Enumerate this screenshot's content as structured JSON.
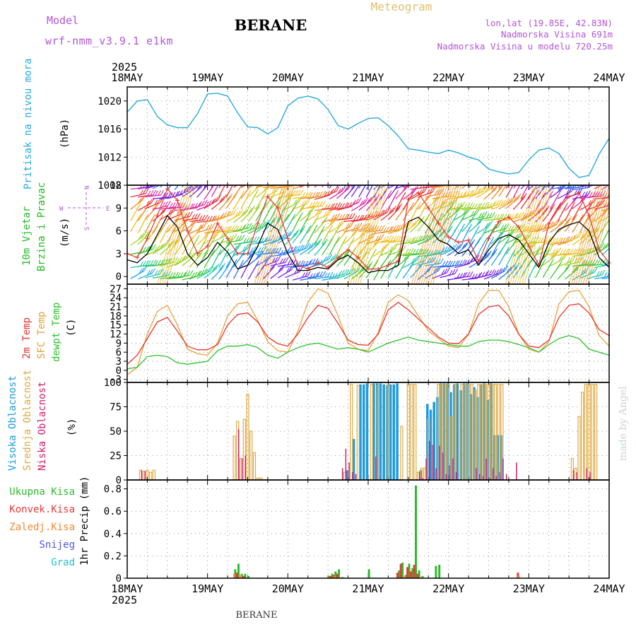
{
  "header": {
    "model_label": "Model",
    "model_name": "wrf-nmm_v3.9.1 e1km",
    "station": "BERANE",
    "product": "Meteogram",
    "lonlat": "lon,lat (19.85E, 42.83N)",
    "elevation": "Nadmorska Visina 691m",
    "model_elevation": "Nadmorska Visina u modelu 720.25m",
    "footer_station": "BERANE",
    "credit": "made by Angel"
  },
  "colors": {
    "pressure": "#29a9e0",
    "wind_speed": "#000000",
    "wind_gust": "#e8342c",
    "t2m": "#e8342c",
    "sfc_temp": "#e6a23c",
    "dewpoint": "#2bc22b",
    "cloud_high": "#1e9be0",
    "cloud_mid": "#e0aa40",
    "cloud_low": "#d01f6c",
    "precip_total": "#2dbb2d",
    "precip_conv": "#e83a3a",
    "precip_frz": "#f08a32",
    "snow": "#5555e0",
    "hail": "#22c4c4",
    "header_purple": "#b455d8",
    "header_gold": "#e0c070"
  },
  "chart_data": [
    {
      "type": "line",
      "panel": "pressure",
      "ylabel": "(hPa)",
      "side_labels": [
        "Pritisak na nivou mora"
      ],
      "x_ticks": [
        "18MAY",
        "19MAY",
        "20MAY",
        "21MAY",
        "22MAY",
        "23MAY",
        "24MAY"
      ],
      "x_year": "2025",
      "y_ticks": [
        "1008",
        "1012",
        "1016",
        "1020"
      ],
      "ylim": [
        1008,
        1022
      ],
      "series": [
        {
          "x": [
            0,
            3,
            6,
            9,
            12,
            15,
            18,
            21,
            24,
            27,
            30,
            33,
            36,
            39,
            42,
            45,
            48,
            51,
            54,
            57,
            60,
            63,
            66,
            69,
            72,
            75,
            78,
            81,
            84,
            87,
            90,
            93,
            96,
            99,
            102,
            105,
            108,
            111,
            114,
            117,
            120,
            123,
            126,
            129,
            132,
            135,
            138,
            141,
            144
          ],
          "y": [
            1018.4,
            1020.0,
            1020.2,
            1017.8,
            1016.6,
            1016.2,
            1016.2,
            1018.2,
            1021.0,
            1021.1,
            1020.7,
            1018.3,
            1016.3,
            1016.2,
            1015.3,
            1016.2,
            1019.3,
            1020.4,
            1020.7,
            1020.3,
            1018.8,
            1016.5,
            1016.0,
            1016.8,
            1017.5,
            1017.6,
            1016.5,
            1015.0,
            1013.2,
            1013.0,
            1012.7,
            1012.5,
            1013.0,
            1012.6,
            1012.0,
            1011.6,
            1010.3,
            1009.9,
            1009.6,
            1009.8,
            1011.6,
            1013.0,
            1013.3,
            1012.5,
            1010.4,
            1009.1,
            1009.4,
            1012.4,
            1014.7
          ]
        }
      ]
    },
    {
      "type": "line",
      "panel": "wind",
      "ylabel": "(m/s)",
      "side_labels": [
        "10m Vjetar",
        "Brzina i Pravac"
      ],
      "compass": {
        "n": "N",
        "s": "S",
        "w": "W",
        "e": "E"
      },
      "y_ticks": [
        "0",
        "3",
        "6",
        "9",
        "12"
      ],
      "ylim": [
        -1,
        12
      ],
      "series": [
        {
          "name": "speed",
          "x": [
            0,
            3,
            6,
            9,
            12,
            15,
            18,
            21,
            24,
            27,
            30,
            33,
            36,
            39,
            42,
            45,
            48,
            51,
            54,
            57,
            60,
            63,
            66,
            69,
            72,
            75,
            78,
            81,
            84,
            87,
            90,
            93,
            96,
            99,
            102,
            105,
            108,
            111,
            114,
            117,
            120,
            123,
            126,
            129,
            132,
            135,
            138,
            141,
            144
          ],
          "y": [
            2.2,
            1.8,
            3.0,
            5.5,
            8.0,
            6.5,
            3.0,
            1.5,
            2.5,
            4.5,
            3.2,
            1.0,
            1.5,
            4.0,
            7.0,
            6.2,
            3.0,
            0.8,
            0.8,
            1.2,
            1.0,
            2.2,
            2.8,
            1.8,
            0.5,
            0.8,
            0.8,
            1.5,
            7.2,
            7.8,
            6.5,
            4.8,
            4.2,
            3.0,
            3.5,
            1.5,
            3.5,
            5.0,
            5.5,
            4.8,
            3.0,
            1.2,
            4.5,
            6.2,
            6.8,
            7.2,
            6.0,
            2.5,
            1.2
          ]
        },
        {
          "name": "gust",
          "x": [
            0,
            3,
            6,
            9,
            12,
            15,
            18,
            21,
            24,
            27,
            30,
            33,
            36,
            39,
            42,
            45,
            48,
            51,
            54,
            57,
            60,
            63,
            66,
            69,
            72,
            75,
            78,
            81,
            84,
            87,
            90,
            93,
            96,
            99,
            102,
            105,
            108,
            111,
            114,
            117,
            120,
            123,
            126,
            129,
            132,
            135,
            138,
            141,
            144
          ],
          "y": [
            3.0,
            2.5,
            5.0,
            8.0,
            11.5,
            10.0,
            6.0,
            3.0,
            4.0,
            7.0,
            5.0,
            3.0,
            3.0,
            7.0,
            10.5,
            9.0,
            5.0,
            1.5,
            1.0,
            1.8,
            1.2,
            2.5,
            3.5,
            2.5,
            1.0,
            1.0,
            1.5,
            2.0,
            10.2,
            11.0,
            9.0,
            7.0,
            5.2,
            4.5,
            4.8,
            2.0,
            5.0,
            7.2,
            7.8,
            6.5,
            4.0,
            1.5,
            7.0,
            9.0,
            10.5,
            11.0,
            8.0,
            3.5,
            1.8
          ]
        }
      ]
    },
    {
      "type": "line",
      "panel": "temperature",
      "ylabel": "(C)",
      "side_labels": [
        "2m Temp",
        "SFC Temp",
        "dewpt Temp"
      ],
      "y_ticks": [
        "-3",
        "0",
        "3",
        "6",
        "9",
        "12",
        "15",
        "18",
        "21",
        "24",
        "27"
      ],
      "ylim": [
        -4,
        28.5
      ],
      "series": [
        {
          "name": "2m Temp",
          "x": [
            0,
            3,
            6,
            9,
            12,
            15,
            18,
            21,
            24,
            27,
            30,
            33,
            36,
            39,
            42,
            45,
            48,
            51,
            54,
            57,
            60,
            63,
            66,
            69,
            72,
            75,
            78,
            81,
            84,
            87,
            90,
            93,
            96,
            99,
            102,
            105,
            108,
            111,
            114,
            117,
            120,
            123,
            126,
            129,
            132,
            135,
            138,
            141,
            144
          ],
          "y": [
            2.0,
            5.0,
            10.5,
            16.0,
            17.5,
            13.0,
            8.0,
            6.8,
            6.8,
            8.5,
            15.0,
            18.5,
            19.0,
            16.0,
            11.0,
            8.8,
            8.0,
            12.0,
            17.5,
            21.5,
            20.5,
            15.5,
            10.0,
            8.5,
            8.3,
            12.0,
            20.0,
            22.5,
            20.0,
            17.0,
            14.0,
            11.0,
            9.0,
            8.8,
            12.0,
            18.5,
            21.0,
            21.5,
            18.0,
            12.0,
            8.0,
            7.5,
            10.0,
            17.5,
            21.5,
            22.0,
            19.0,
            13.5,
            11.5
          ]
        },
        {
          "name": "SFC Temp",
          "x": [
            0,
            3,
            6,
            9,
            12,
            15,
            18,
            21,
            24,
            27,
            30,
            33,
            36,
            39,
            42,
            45,
            48,
            51,
            54,
            57,
            60,
            63,
            66,
            69,
            72,
            75,
            78,
            81,
            84,
            87,
            90,
            93,
            96,
            99,
            102,
            105,
            108,
            111,
            114,
            117,
            120,
            123,
            126,
            129,
            132,
            135,
            138,
            141,
            144
          ],
          "y": [
            -1.5,
            1.0,
            12.0,
            19.5,
            21.5,
            15.0,
            7.0,
            5.5,
            5.0,
            9.0,
            18.0,
            22.0,
            22.5,
            16.5,
            9.5,
            6.5,
            6.0,
            13.0,
            22.5,
            27.0,
            25.5,
            18.0,
            9.0,
            7.0,
            6.5,
            12.5,
            22.5,
            25.0,
            23.0,
            18.0,
            13.0,
            10.5,
            8.0,
            7.5,
            12.0,
            22.0,
            26.5,
            26.5,
            21.0,
            12.0,
            7.0,
            6.0,
            9.5,
            22.0,
            26.0,
            26.5,
            21.0,
            11.5,
            8.0
          ]
        },
        {
          "name": "dewpt Temp",
          "x": [
            0,
            3,
            6,
            9,
            12,
            15,
            18,
            21,
            24,
            27,
            30,
            33,
            36,
            39,
            42,
            45,
            48,
            51,
            54,
            57,
            60,
            63,
            66,
            69,
            72,
            75,
            78,
            81,
            84,
            87,
            90,
            93,
            96,
            99,
            102,
            105,
            108,
            111,
            114,
            117,
            120,
            123,
            126,
            129,
            132,
            135,
            138,
            141,
            144
          ],
          "y": [
            0.5,
            1.0,
            4.5,
            5.0,
            4.5,
            2.5,
            2.0,
            2.5,
            3.0,
            6.5,
            8.0,
            8.0,
            8.5,
            7.5,
            5.0,
            4.0,
            6.0,
            7.5,
            8.5,
            9.0,
            8.0,
            7.0,
            7.5,
            7.0,
            6.0,
            7.5,
            9.0,
            10.0,
            11.0,
            10.0,
            9.5,
            9.0,
            8.5,
            8.0,
            8.0,
            9.5,
            10.0,
            10.0,
            9.5,
            8.5,
            7.5,
            6.0,
            8.5,
            10.5,
            11.5,
            10.5,
            7.0,
            6.0,
            5.0
          ]
        }
      ]
    },
    {
      "type": "bar",
      "panel": "clouds",
      "ylabel": "(%)",
      "side_labels": [
        "Visoka Oblacnost",
        "Srednja Oblacnost",
        "Niska Oblacnost"
      ],
      "y_ticks": [
        "0",
        "25",
        "50",
        "75",
        "100"
      ],
      "ylim": [
        0,
        100
      ],
      "series": [
        {
          "name": "Visoka Oblacnost",
          "x": [
            66,
            68,
            70,
            71,
            72,
            74,
            75,
            76,
            77,
            78,
            79,
            80,
            81,
            88,
            90,
            91,
            92,
            93,
            94,
            95,
            96,
            97,
            98,
            99,
            100,
            101,
            102,
            103,
            104,
            105,
            106,
            107,
            108,
            109,
            110,
            111,
            112
          ],
          "y": [
            10,
            42,
            98,
            98,
            99,
            99,
            99,
            99,
            98,
            97,
            98,
            98,
            99,
            10,
            78,
            72,
            80,
            85,
            99,
            99,
            99,
            90,
            98,
            99,
            92,
            99,
            99,
            88,
            95,
            85,
            98,
            99,
            82,
            99,
            46,
            46,
            46
          ]
        },
        {
          "name": "Srednja Oblacnost",
          "x": [
            4,
            5,
            6,
            7,
            8,
            32,
            33,
            34,
            35,
            36,
            37,
            38,
            39,
            40,
            65,
            67,
            69,
            73,
            75,
            78,
            82,
            84,
            85,
            86,
            87,
            88,
            89,
            90,
            93,
            94,
            95,
            96,
            97,
            98,
            100,
            101,
            102,
            103,
            104,
            105,
            106,
            107,
            108,
            109,
            110,
            111,
            112,
            133,
            134,
            135,
            136,
            137,
            138,
            139,
            140
          ],
          "y": [
            10,
            9,
            10,
            8,
            10,
            45,
            60,
            22,
            62,
            88,
            50,
            28,
            2,
            2,
            8,
            98,
            97,
            98,
            97,
            98,
            55,
            98,
            98,
            98,
            8,
            12,
            12,
            62,
            98,
            98,
            98,
            98,
            65,
            98,
            98,
            98,
            98,
            98,
            92,
            98,
            98,
            98,
            98,
            98,
            98,
            98,
            98,
            22,
            12,
            65,
            90,
            98,
            98,
            98,
            98
          ]
        },
        {
          "name": "Niska Oblacnost",
          "x": [
            4,
            5,
            33,
            34,
            35,
            64,
            65,
            66,
            67,
            68,
            74,
            87,
            88,
            89,
            90,
            91,
            92,
            93,
            94,
            95,
            96,
            97,
            98,
            104,
            105,
            106,
            107,
            108,
            109,
            110,
            111,
            112,
            113,
            116,
            133,
            134,
            137,
            138
          ],
          "y": [
            10,
            9,
            52,
            22,
            25,
            12,
            32,
            18,
            8,
            6,
            24,
            8,
            2,
            22,
            40,
            36,
            12,
            35,
            28,
            6,
            15,
            22,
            8,
            12,
            6,
            4,
            22,
            2,
            12,
            4,
            8,
            22,
            6,
            18,
            10,
            8,
            12,
            8
          ]
        }
      ]
    },
    {
      "type": "bar",
      "panel": "precipitation",
      "ylabel": "1hr Precip (mm)",
      "side_labels": [
        "Ukupna Kisa",
        "Konvek.Kisa",
        "Zaledj.Kisa",
        "Snijeg",
        "Grad"
      ],
      "x_ticks": [
        "18MAY",
        "19MAY",
        "20MAY",
        "21MAY",
        "22MAY",
        "23MAY",
        "24MAY"
      ],
      "x_year": "2025",
      "y_ticks": [
        "0",
        "0.2",
        "0.4",
        "0.6",
        "0.8"
      ],
      "ylim": [
        0,
        0.88
      ],
      "series": [
        {
          "name": "Ukupna Kisa",
          "x": [
            32,
            33,
            34,
            35,
            36,
            60,
            61,
            62,
            63,
            64,
            72,
            81,
            82,
            83,
            84,
            85,
            86,
            87,
            88,
            92,
            93
          ],
          "y": [
            0.08,
            0.13,
            0.04,
            0.04,
            0.02,
            0.02,
            0.04,
            0.06,
            0.08,
            0.01,
            0.08,
            0.07,
            0.14,
            0.03,
            0.13,
            0.09,
            0.83,
            0.07,
            0.02,
            0.11,
            0.12
          ]
        },
        {
          "name": "Konvek.Kisa",
          "x": [
            33,
            35,
            61,
            62,
            63,
            81,
            82,
            84,
            85,
            86,
            87,
            117
          ],
          "y": [
            0.05,
            0.02,
            0.02,
            0.03,
            0.04,
            0.05,
            0.13,
            0.1,
            0.06,
            0.12,
            0.04,
            0.05
          ]
        },
        {
          "name": "Zaledj.Kisa",
          "x": [
            32,
            34,
            60,
            62,
            83,
            88,
            117
          ],
          "y": [
            0.04,
            0.03,
            0.01,
            0.02,
            0.02,
            0.01,
            0.02
          ]
        }
      ]
    }
  ]
}
